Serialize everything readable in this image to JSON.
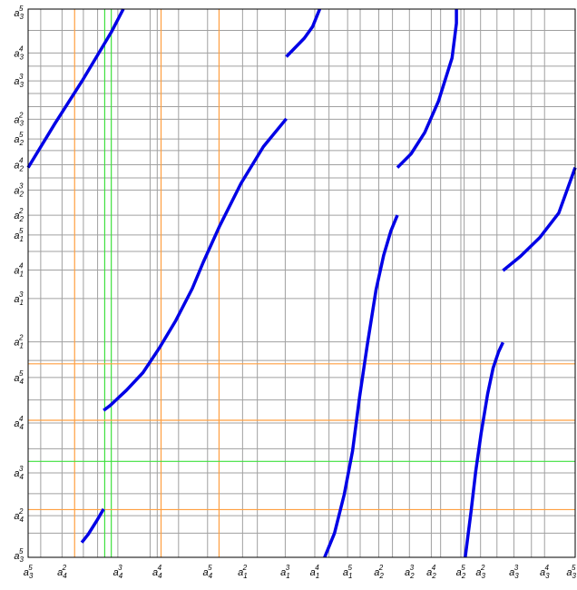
{
  "chart_data": {
    "type": "line",
    "title": "",
    "xlabel": "",
    "ylabel": "",
    "grid": true,
    "grid_color": "#a0a0a0",
    "series_color": "#0000e6",
    "frame_color": "#000000",
    "x_ticks": [
      {
        "v": 0.0,
        "base": "a",
        "sub": "3",
        "sup": "5"
      },
      {
        "v": 0.062,
        "base": "a",
        "sub": "4",
        "sup": "2"
      },
      {
        "v": 0.164,
        "base": "a",
        "sub": "4",
        "sup": "3"
      },
      {
        "v": 0.236,
        "base": "a",
        "sub": "4",
        "sup": "4"
      },
      {
        "v": 0.328,
        "base": "a",
        "sub": "4",
        "sup": "5"
      },
      {
        "v": 0.392,
        "base": "a",
        "sub": "1",
        "sup": "2"
      },
      {
        "v": 0.47,
        "base": "a",
        "sub": "1",
        "sup": "3"
      },
      {
        "v": 0.524,
        "base": "a",
        "sub": "1",
        "sup": "4"
      },
      {
        "v": 0.584,
        "base": "a",
        "sub": "1",
        "sup": "5"
      },
      {
        "v": 0.641,
        "base": "a",
        "sub": "2",
        "sup": "2"
      },
      {
        "v": 0.697,
        "base": "a",
        "sub": "2",
        "sup": "3"
      },
      {
        "v": 0.737,
        "base": "a",
        "sub": "2",
        "sup": "4"
      },
      {
        "v": 0.791,
        "base": "a",
        "sub": "2",
        "sup": "5"
      },
      {
        "v": 0.827,
        "base": "a",
        "sub": "3",
        "sup": "2"
      },
      {
        "v": 0.888,
        "base": "a",
        "sub": "3",
        "sup": "3"
      },
      {
        "v": 0.944,
        "base": "a",
        "sub": "3",
        "sup": "4"
      },
      {
        "v": 1.0,
        "base": "a",
        "sub": "3",
        "sup": "5"
      }
    ],
    "x_extra_grid": [
      0.023,
      0.101,
      0.127,
      0.223,
      0.275,
      0.419,
      0.55,
      0.607,
      0.666,
      0.754,
      0.797,
      0.857,
      0.92
    ],
    "y_ticks": [
      {
        "v": 0.0,
        "base": "a",
        "sub": "3",
        "sup": "5"
      },
      {
        "v": 0.076,
        "base": "a",
        "sub": "4",
        "sup": "2"
      },
      {
        "v": 0.154,
        "base": "a",
        "sub": "4",
        "sup": "3"
      },
      {
        "v": 0.245,
        "base": "a",
        "sub": "4",
        "sup": "4"
      },
      {
        "v": 0.328,
        "base": "a",
        "sub": "4",
        "sup": "5"
      },
      {
        "v": 0.393,
        "base": "a",
        "sub": "1",
        "sup": "2"
      },
      {
        "v": 0.472,
        "base": "a",
        "sub": "1",
        "sup": "3"
      },
      {
        "v": 0.524,
        "base": "a",
        "sub": "1",
        "sup": "4"
      },
      {
        "v": 0.588,
        "base": "a",
        "sub": "1",
        "sup": "5"
      },
      {
        "v": 0.624,
        "base": "a",
        "sub": "2",
        "sup": "2"
      },
      {
        "v": 0.67,
        "base": "a",
        "sub": "2",
        "sup": "3"
      },
      {
        "v": 0.716,
        "base": "a",
        "sub": "2",
        "sup": "4"
      },
      {
        "v": 0.763,
        "base": "a",
        "sub": "2",
        "sup": "5"
      },
      {
        "v": 0.799,
        "base": "a",
        "sub": "3",
        "sup": "2"
      },
      {
        "v": 0.869,
        "base": "a",
        "sub": "3",
        "sup": "3"
      },
      {
        "v": 0.92,
        "base": "a",
        "sub": "3",
        "sup": "4"
      },
      {
        "v": 1.0,
        "base": "a",
        "sub": "3",
        "sup": "5"
      }
    ],
    "y_extra_grid": [
      0.044,
      0.116,
      0.198,
      0.287,
      0.359,
      0.558,
      0.692,
      0.742,
      0.822,
      0.846,
      0.896,
      0.961
    ],
    "highlight_lines": [
      {
        "axis": "x",
        "v": 0.085,
        "color": "#ff9f40"
      },
      {
        "axis": "x",
        "v": 0.152,
        "color": "#3fe03f"
      },
      {
        "axis": "x",
        "v": 0.14,
        "color": "#3fe03f"
      },
      {
        "axis": "x",
        "v": 0.243,
        "color": "#ff9f40"
      },
      {
        "axis": "x",
        "v": 0.349,
        "color": "#ff9f40"
      },
      {
        "axis": "y",
        "v": 0.353,
        "color": "#ff9f40"
      },
      {
        "axis": "y",
        "v": 0.25,
        "color": "#ff9f40"
      },
      {
        "axis": "y",
        "v": 0.175,
        "color": "#3fe03f"
      },
      {
        "axis": "y",
        "v": 0.087,
        "color": "#ff9f40"
      }
    ],
    "series": [
      {
        "points": [
          [
            0.0,
            0.711
          ],
          [
            0.049,
            0.791
          ],
          [
            0.1,
            0.871
          ],
          [
            0.152,
            0.958
          ],
          [
            0.174,
            1.0
          ]
        ]
      },
      {
        "points": [
          [
            0.472,
            0.913
          ],
          [
            0.505,
            0.947
          ],
          [
            0.52,
            0.968
          ],
          [
            0.533,
            1.0
          ]
        ]
      },
      {
        "points": [
          [
            0.472,
            0.8
          ],
          [
            0.43,
            0.749
          ],
          [
            0.389,
            0.682
          ],
          [
            0.35,
            0.604
          ],
          [
            0.32,
            0.538
          ],
          [
            0.3,
            0.49
          ],
          [
            0.27,
            0.432
          ],
          [
            0.24,
            0.382
          ],
          [
            0.21,
            0.337
          ],
          [
            0.18,
            0.305
          ],
          [
            0.15,
            0.277
          ],
          [
            0.138,
            0.268
          ]
        ]
      },
      {
        "points": [
          [
            0.138,
            0.088
          ],
          [
            0.125,
            0.066
          ],
          [
            0.11,
            0.042
          ],
          [
            0.098,
            0.027
          ]
        ]
      },
      {
        "points": [
          [
            0.675,
            0.711
          ],
          [
            0.7,
            0.736
          ],
          [
            0.725,
            0.775
          ],
          [
            0.75,
            0.832
          ],
          [
            0.775,
            0.911
          ],
          [
            0.783,
            0.974
          ],
          [
            0.783,
            1.0
          ]
        ]
      },
      {
        "points": [
          [
            0.675,
            0.624
          ],
          [
            0.663,
            0.595
          ],
          [
            0.65,
            0.551
          ],
          [
            0.636,
            0.488
          ],
          [
            0.62,
            0.388
          ],
          [
            0.606,
            0.293
          ],
          [
            0.593,
            0.194
          ],
          [
            0.578,
            0.115
          ],
          [
            0.56,
            0.044
          ],
          [
            0.542,
            0.0
          ]
        ]
      },
      {
        "points": [
          [
            0.868,
            0.392
          ],
          [
            0.86,
            0.375
          ],
          [
            0.85,
            0.345
          ],
          [
            0.84,
            0.298
          ],
          [
            0.828,
            0.226
          ],
          [
            0.818,
            0.156
          ],
          [
            0.81,
            0.086
          ],
          [
            0.799,
            0.0
          ]
        ]
      },
      {
        "points": [
          [
            0.868,
            0.523
          ],
          [
            0.9,
            0.549
          ],
          [
            0.935,
            0.583
          ],
          [
            0.97,
            0.628
          ],
          [
            1.0,
            0.711
          ]
        ]
      }
    ]
  }
}
